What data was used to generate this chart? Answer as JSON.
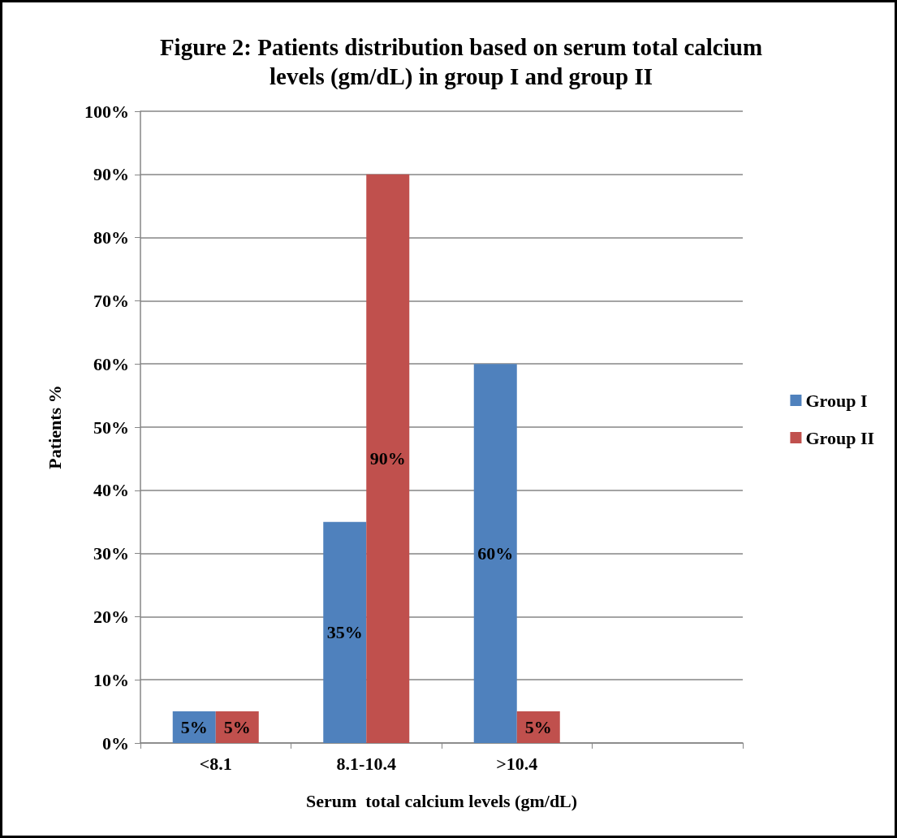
{
  "chart_data": {
    "type": "bar",
    "title": "Figure 2: Patients distribution based on serum total calcium\nlevels (gm/dL) in group I and group II",
    "xlabel": "Serum  total calcium levels (gm/dL)",
    "ylabel": "Patients %",
    "categories": [
      "<8.1",
      "8.1-10.4",
      ">10.4",
      null
    ],
    "series": [
      {
        "name": "Group I",
        "color": "#4f81bd",
        "values": [
          5,
          35,
          60,
          null
        ],
        "value_labels": [
          "5%",
          "35%",
          "60%",
          null
        ]
      },
      {
        "name": "Group II",
        "color": "#c0504d",
        "values": [
          5,
          90,
          5,
          null
        ],
        "value_labels": [
          "5%",
          "90%",
          "5%",
          null
        ]
      }
    ],
    "ylim": [
      0,
      100
    ],
    "yticks": [
      {
        "value": 0,
        "label": "0%"
      },
      {
        "value": 10,
        "label": "10%"
      },
      {
        "value": 20,
        "label": "20%"
      },
      {
        "value": 30,
        "label": "30%"
      },
      {
        "value": 40,
        "label": "40%"
      },
      {
        "value": 50,
        "label": "50%"
      },
      {
        "value": 60,
        "label": "60%"
      },
      {
        "value": 70,
        "label": "70%"
      },
      {
        "value": 80,
        "label": "80%"
      },
      {
        "value": 90,
        "label": "90%"
      },
      {
        "value": 100,
        "label": "100%"
      }
    ],
    "grid": "y",
    "legend": "right"
  }
}
